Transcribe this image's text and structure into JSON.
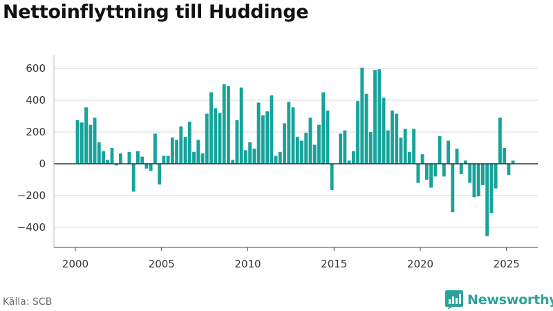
{
  "title": "Nettoinflyttning till Huddinge",
  "source": "Källa: SCB",
  "brand": {
    "name": "Newsworthy",
    "icon": "bar-chart-speech-bubble-icon"
  },
  "colors": {
    "bar": "#17a39a",
    "zero_line": "#333333",
    "grid": "#d9d9d9",
    "axis": "#444444",
    "brand": "#2aa39a"
  },
  "chart_data": {
    "type": "bar",
    "title": "Nettoinflyttning till Huddinge",
    "xlabel": "",
    "ylabel": "",
    "frequency": "quarterly",
    "start": "2000 Q1",
    "ylim": [
      -480,
      640
    ],
    "yticks": [
      -400,
      -200,
      0,
      200,
      400,
      600
    ],
    "xlim": [
      1999.25,
      2026.85
    ],
    "xticks": [
      2000,
      2005,
      2010,
      2015,
      2020,
      2025
    ],
    "grid": "horizontal",
    "legend": "none",
    "series": [
      {
        "values": [
          275,
          260,
          355,
          245,
          290,
          135,
          80,
          25,
          100,
          -10,
          65,
          0,
          75,
          -175,
          80,
          45,
          -30,
          -45,
          190,
          -130,
          50,
          50,
          165,
          150,
          235,
          170,
          265,
          75,
          150,
          65,
          315,
          450,
          350,
          320,
          500,
          490,
          25,
          275,
          480,
          85,
          135,
          95,
          385,
          305,
          330,
          430,
          50,
          75,
          255,
          390,
          355,
          170,
          145,
          195,
          290,
          120,
          245,
          450,
          335,
          -165,
          0,
          190,
          210,
          20,
          80,
          395,
          605,
          440,
          200,
          590,
          595,
          415,
          210,
          335,
          315,
          165,
          220,
          75,
          220,
          -120,
          60,
          -100,
          -150,
          -80,
          175,
          -80,
          145,
          -305,
          95,
          -65,
          20,
          -120,
          -210,
          -205,
          -135,
          -455,
          -310,
          -155,
          290,
          100,
          -70,
          20
        ]
      }
    ]
  }
}
